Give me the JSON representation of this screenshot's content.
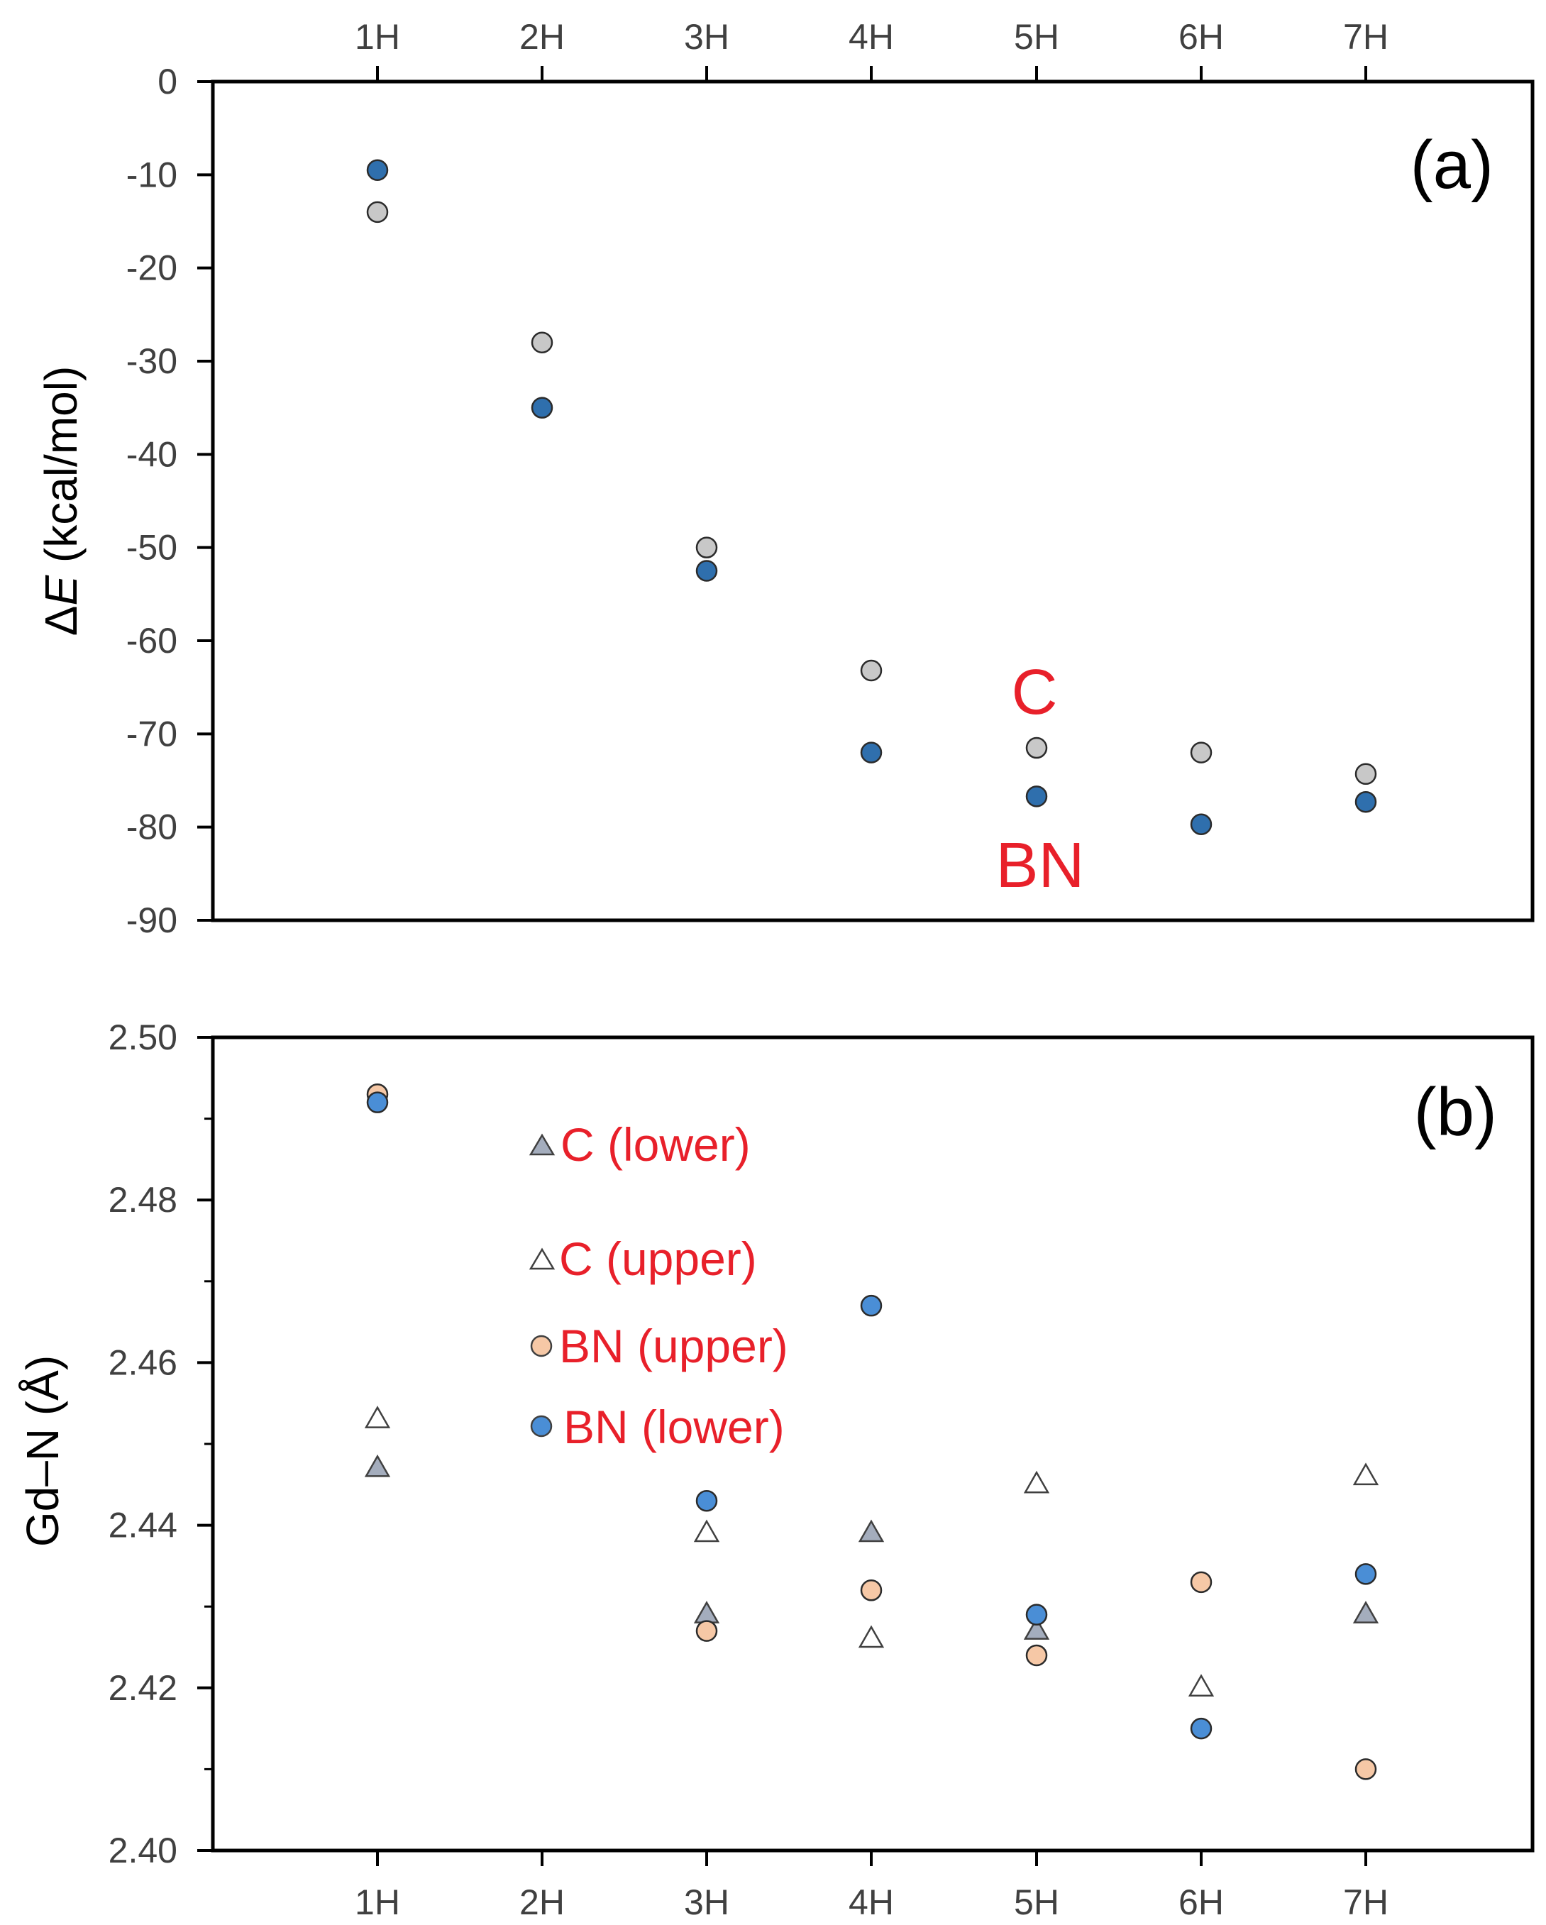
{
  "chart_data": [
    {
      "type": "scatter",
      "panel_label": "(a)",
      "categories": [
        "1H",
        "2H",
        "3H",
        "4H",
        "5H",
        "6H",
        "7H"
      ],
      "ylabel_symbol": "Δ",
      "ylabel_var": "E",
      "ylabel_unit": " (kcal/mol)",
      "ylim": [
        -90,
        0
      ],
      "yticks": [
        0,
        -10,
        -20,
        -30,
        -40,
        -50,
        -60,
        -70,
        -80,
        -90
      ],
      "xtick_position": "top",
      "series": [
        {
          "name": "C",
          "marker": "circle",
          "fill": "#c8c8c8",
          "values": [
            -14,
            -28,
            -50,
            -63.2,
            -71.5,
            -72,
            -74.3
          ]
        },
        {
          "name": "BN",
          "marker": "circle",
          "fill": "#2f6fad",
          "values": [
            -9.5,
            -35,
            -52.5,
            -72,
            -76.7,
            -79.7,
            -77.3
          ]
        }
      ],
      "annotations": [
        {
          "text": "C",
          "color": "#e8202a"
        },
        {
          "text": "BN",
          "color": "#e8202a"
        }
      ]
    },
    {
      "type": "scatter",
      "panel_label": "(b)",
      "categories": [
        "1H",
        "2H",
        "3H",
        "4H",
        "5H",
        "6H",
        "7H"
      ],
      "ylabel": "Gd–N (Å)",
      "ylim": [
        2.4,
        2.5
      ],
      "yticks": [
        "2.40",
        "2.42",
        "2.44",
        "2.46",
        "2.48",
        "2.50"
      ],
      "xtick_position": "bottom",
      "series": [
        {
          "name": "C (lower)",
          "marker": "triangle",
          "fill": "#a4adbd",
          "values": [
            2.447,
            null,
            2.429,
            2.439,
            2.427,
            null,
            2.429
          ]
        },
        {
          "name": "C (upper)",
          "marker": "triangle",
          "fill": "#ffffff",
          "values": [
            2.453,
            null,
            2.439,
            2.426,
            2.445,
            2.42,
            2.446
          ]
        },
        {
          "name": "BN (upper)",
          "marker": "circle",
          "fill": "#f6c8a6",
          "values": [
            2.493,
            null,
            2.427,
            2.432,
            2.424,
            2.433,
            2.41
          ]
        },
        {
          "name": "BN (lower)",
          "marker": "circle",
          "fill": "#4a8ed6",
          "values": [
            2.492,
            null,
            2.443,
            2.467,
            2.429,
            2.415,
            2.434
          ]
        }
      ],
      "legend_color": "#e8202a"
    }
  ]
}
